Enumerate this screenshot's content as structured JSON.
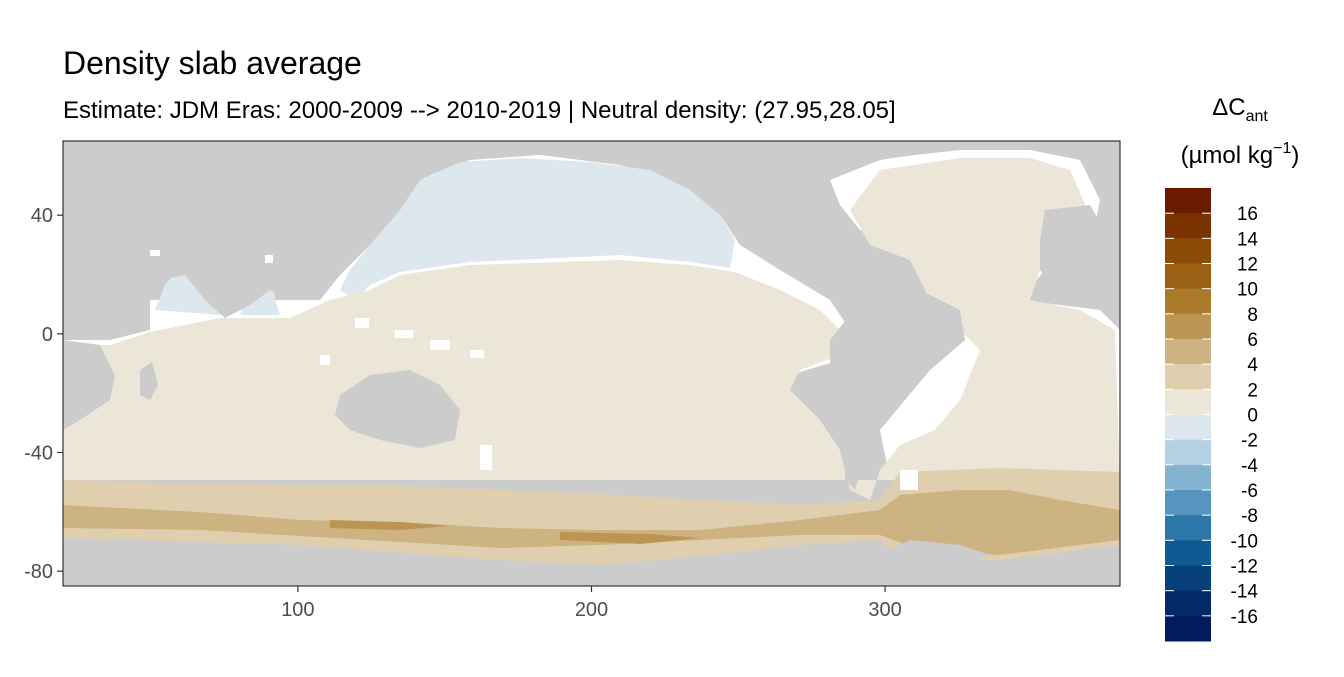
{
  "title": "Density slab average",
  "subtitle": "Estimate: JDM Eras: 2000-2009 --> 2010-2019 | Neutral density: (27.95,28.05]",
  "map": {
    "x_range": [
      20,
      380
    ],
    "y_range": [
      -85,
      65
    ],
    "x_ticks": [
      {
        "value": 100,
        "label": "100"
      },
      {
        "value": 200,
        "label": "200"
      },
      {
        "value": 300,
        "label": "300"
      }
    ],
    "y_ticks": [
      {
        "value": 40,
        "label": "40"
      },
      {
        "value": 0,
        "label": "0"
      },
      {
        "value": -40,
        "label": "-40"
      },
      {
        "value": -80,
        "label": "-80"
      }
    ],
    "land_color": "#cccccc",
    "no_data_color": "#ffffff"
  },
  "legend": {
    "title_main": "ΔC",
    "title_sub": "ant",
    "units_main": "(µmol kg",
    "units_sup": "−1",
    "units_close": ")",
    "bins": [
      {
        "color": "#6b1a00"
      },
      {
        "color": "#7a3300"
      },
      {
        "color": "#8a4a08"
      },
      {
        "color": "#9a6114"
      },
      {
        "color": "#ab7a2a"
      },
      {
        "color": "#bb9552"
      },
      {
        "color": "#ceb382"
      },
      {
        "color": "#e0cfae"
      },
      {
        "color": "#ece6d9"
      },
      {
        "color": "#dde8ee"
      },
      {
        "color": "#b4d0e3"
      },
      {
        "color": "#85b4d1"
      },
      {
        "color": "#5595bf"
      },
      {
        "color": "#2b78a8"
      },
      {
        "color": "#0e5a92"
      },
      {
        "color": "#063f7a"
      },
      {
        "color": "#042a69"
      },
      {
        "color": "#001c5e"
      }
    ],
    "labels": [
      "16",
      "14",
      "12",
      "10",
      "8",
      "6",
      "4",
      "2",
      "0",
      "-2",
      "-4",
      "-6",
      "-8",
      "-10",
      "-12",
      "-14",
      "-16"
    ]
  }
}
